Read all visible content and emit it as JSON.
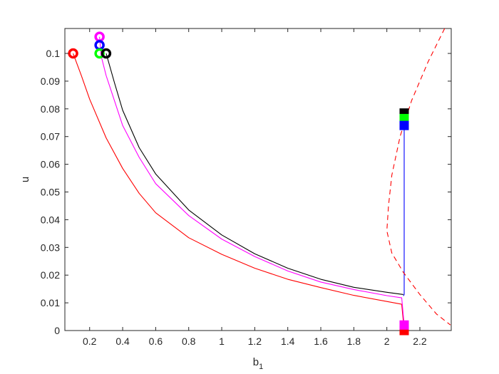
{
  "chart_data": {
    "type": "line",
    "title": "",
    "xlabel": "b",
    "xlabel_subscript": "1",
    "ylabel": "u",
    "xlim": [
      0.05,
      2.39
    ],
    "ylim": [
      0,
      0.109
    ],
    "grid": false,
    "xticks": [
      0.2,
      0.4,
      0.6,
      0.8,
      1,
      1.2,
      1.4,
      1.6,
      1.8,
      2,
      2.2
    ],
    "xtick_labels": [
      "0.2",
      "0.4",
      "0.6",
      "0.8",
      "1",
      "1.2",
      "1.4",
      "1.6",
      "1.8",
      "2",
      "2.2"
    ],
    "yticks": [
      0,
      0.01,
      0.02,
      0.03,
      0.04,
      0.05,
      0.06,
      0.07,
      0.08,
      0.09,
      0.1
    ],
    "ytick_labels": [
      "0",
      "0.01",
      "0.02",
      "0.03",
      "0.04",
      "0.05",
      "0.06",
      "0.07",
      "0.08",
      "0.09",
      "0.1"
    ],
    "series": [
      {
        "color": "#ff0000",
        "style": "solid",
        "x": [
          0.1,
          0.15,
          0.2,
          0.3,
          0.4,
          0.5,
          0.6,
          0.8,
          1.0,
          1.2,
          1.4,
          1.6,
          1.8,
          2.0,
          2.09,
          2.105
        ],
        "y": [
          0.1,
          0.092,
          0.0835,
          0.0695,
          0.0585,
          0.0495,
          0.0425,
          0.0335,
          0.0275,
          0.0225,
          0.0185,
          0.0155,
          0.0127,
          0.0105,
          0.0095,
          0.0
        ]
      },
      {
        "color": "#ff00ff",
        "style": "solid",
        "x": [
          0.26,
          0.27,
          0.3,
          0.4,
          0.5,
          0.6,
          0.8,
          1.0,
          1.2,
          1.4,
          1.6,
          1.8,
          2.0,
          2.09,
          2.105
        ],
        "y": [
          0.106,
          0.099,
          0.092,
          0.074,
          0.0625,
          0.053,
          0.0415,
          0.033,
          0.0267,
          0.0215,
          0.0175,
          0.0148,
          0.0126,
          0.0118,
          0.002
        ]
      },
      {
        "color": "#000000",
        "style": "solid",
        "x": [
          0.3,
          0.35,
          0.4,
          0.5,
          0.6,
          0.8,
          1.0,
          1.2,
          1.4,
          1.6,
          1.8,
          2.0,
          2.1
        ],
        "y": [
          0.1,
          0.0895,
          0.0795,
          0.066,
          0.0565,
          0.0435,
          0.0345,
          0.0277,
          0.0225,
          0.0185,
          0.0156,
          0.0138,
          0.013
        ]
      },
      {
        "color": "#0000ff",
        "style": "solid",
        "x": [
          2.105,
          2.105,
          2.1
        ],
        "y": [
          0.074,
          0.013,
          0.0125
        ]
      },
      {
        "color": "#ff0000",
        "style": "dashed",
        "x": [
          2.35,
          2.25,
          2.15,
          2.08,
          2.03,
          2.01,
          2.0,
          2.03,
          2.1,
          2.2,
          2.3,
          2.385
        ],
        "y": [
          0.109,
          0.097,
          0.083,
          0.07,
          0.056,
          0.045,
          0.036,
          0.028,
          0.021,
          0.013,
          0.006,
          0.002
        ]
      }
    ],
    "markers": [
      {
        "shape": "circle",
        "color": "#ff0000",
        "x": 0.1,
        "y": 0.1
      },
      {
        "shape": "circle",
        "color": "#ff00ff",
        "x": 0.26,
        "y": 0.106
      },
      {
        "shape": "circle",
        "color": "#0000ff",
        "x": 0.26,
        "y": 0.103
      },
      {
        "shape": "circle",
        "color": "#00ff00",
        "x": 0.26,
        "y": 0.1
      },
      {
        "shape": "circle",
        "color": "#000000",
        "x": 0.3,
        "y": 0.1
      },
      {
        "shape": "square",
        "color": "#000000",
        "x": 2.105,
        "y": 0.0785
      },
      {
        "shape": "square",
        "color": "#00ff00",
        "x": 2.105,
        "y": 0.0765
      },
      {
        "shape": "square",
        "color": "#0000ff",
        "x": 2.105,
        "y": 0.074
      },
      {
        "shape": "square",
        "color": "#ff0000",
        "x": 2.105,
        "y": 0.0
      },
      {
        "shape": "square",
        "color": "#ff00ff",
        "x": 2.105,
        "y": 0.002
      }
    ]
  }
}
